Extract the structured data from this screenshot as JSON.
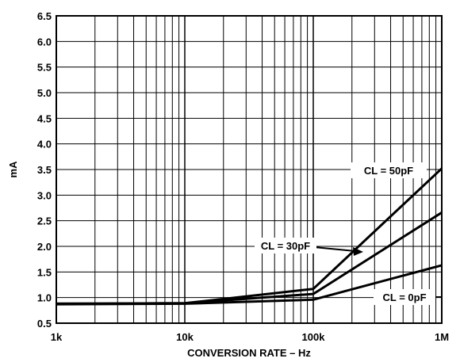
{
  "chart_data": {
    "type": "line",
    "title": "",
    "xlabel": "CONVERSION RATE – Hz",
    "ylabel": "mA",
    "x_scale": "log",
    "xlim": [
      1000,
      1000000
    ],
    "ylim": [
      0.5,
      6.5
    ],
    "x_ticks": [
      1000,
      10000,
      100000,
      1000000
    ],
    "x_tick_labels": [
      "1k",
      "10k",
      "100k",
      "1M"
    ],
    "y_ticks": [
      0.5,
      1.0,
      1.5,
      2.0,
      2.5,
      3.0,
      3.5,
      4.0,
      4.5,
      5.0,
      5.5,
      6.0,
      6.5
    ],
    "y_tick_labels": [
      "0.5",
      "1.0",
      "1.5",
      "2.0",
      "2.5",
      "3.0",
      "3.5",
      "4.0",
      "4.5",
      "5.0",
      "5.5",
      "6.0",
      "6.5"
    ],
    "grid": true,
    "line_color": "#000000",
    "series": [
      {
        "name": "CL = 50pF",
        "x": [
          1000,
          10000,
          100000,
          1000000
        ],
        "values": [
          0.88,
          0.89,
          1.17,
          3.52
        ]
      },
      {
        "name": "CL = 30pF",
        "x": [
          1000,
          10000,
          100000,
          1000000
        ],
        "values": [
          0.88,
          0.89,
          1.07,
          2.66
        ]
      },
      {
        "name": "CL = 0pF",
        "x": [
          1000,
          10000,
          100000,
          1000000
        ],
        "values": [
          0.87,
          0.88,
          0.96,
          1.63
        ]
      }
    ],
    "annotations": [
      {
        "text": "CL = 50pF",
        "series": 0
      },
      {
        "text": "CL = 30pF",
        "series": 1
      },
      {
        "text": "CL = 0pF",
        "series": 2
      }
    ]
  }
}
